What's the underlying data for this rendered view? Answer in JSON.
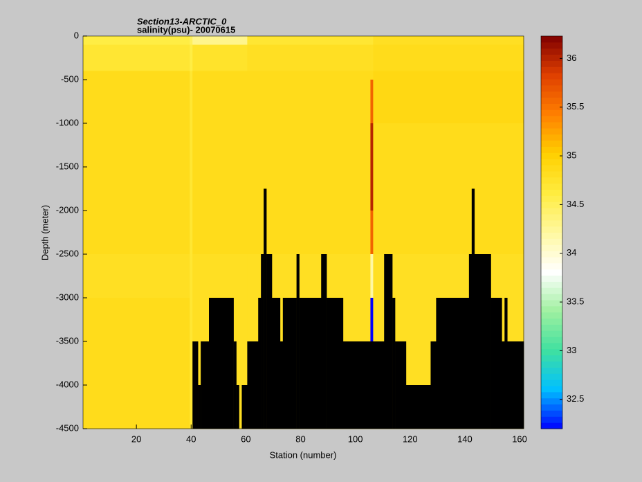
{
  "chart_data": {
    "type": "heatmap",
    "title": "Section13-ARCTIC_0",
    "subtitle": "salinity(psu)- 20070615",
    "x_label": "Station (number)",
    "y_label": "Depth (meter)",
    "xlim": [
      0.5,
      161.5
    ],
    "ylim": [
      -4500,
      0
    ],
    "xticks": [
      20,
      40,
      60,
      80,
      100,
      120,
      140,
      160
    ],
    "yticks": [
      0,
      -500,
      -1000,
      -1500,
      -2000,
      -2500,
      -3000,
      -3500,
      -4000,
      -4500
    ],
    "x_edges": [
      0.5,
      39.5,
      40.5,
      60.5,
      105.5,
      106.5,
      161.5
    ],
    "y_edges": [
      0,
      -100,
      -400,
      -500,
      -1000,
      -2000,
      -2500,
      -3000,
      -3500,
      -4500
    ],
    "values": [
      [
        34.6,
        34.5,
        34.3,
        34.7,
        34.7,
        34.8
      ],
      [
        34.7,
        34.6,
        34.75,
        34.8,
        34.8,
        34.85
      ],
      [
        34.85,
        34.7,
        34.85,
        34.85,
        34.85,
        34.9
      ],
      [
        34.85,
        34.7,
        34.85,
        34.85,
        35.6,
        34.9
      ],
      [
        34.85,
        34.7,
        34.85,
        34.85,
        36.0,
        34.85
      ],
      [
        34.85,
        34.7,
        34.85,
        34.85,
        35.6,
        34.85
      ],
      [
        34.8,
        34.7,
        34.8,
        34.8,
        34.2,
        34.8
      ],
      [
        34.85,
        34.7,
        34.8,
        34.8,
        32.2,
        34.8
      ],
      [
        34.85,
        34.7,
        34.8,
        34.8,
        34.8,
        34.8
      ]
    ],
    "clim": [
      32.2,
      36.23
    ],
    "colorbar_ticks": [
      32.5,
      33,
      33.5,
      34,
      34.5,
      35,
      35.5,
      36
    ],
    "colormap": [
      "#0000ff",
      "#00c0ff",
      "#40e0a0",
      "#a0f0a0",
      "#ffffff",
      "#fff8a0",
      "#ffec40",
      "#ffd000",
      "#ff8000",
      "#e04000",
      "#800000"
    ],
    "bottom_edges": [
      40.5,
      42.5,
      43.5,
      46.5,
      55.5,
      56.5,
      57.5,
      58.5,
      60.5,
      64.5,
      65.5,
      66.5,
      67.5,
      69.5,
      72.5,
      73.5,
      78.5,
      79.5,
      87.5,
      89.5,
      95.5,
      110.5,
      113.5,
      114.5,
      118.5,
      127.5,
      129.5,
      141.5,
      142.5,
      143.5,
      149.5,
      153.5,
      154.5,
      155.5,
      161.5
    ],
    "bottom_depths": [
      -3500,
      -4000,
      -3500,
      -3000,
      -3500,
      -4000,
      -4500,
      -4000,
      -3500,
      -3000,
      -2500,
      -1750,
      -2500,
      -3000,
      -3500,
      -3000,
      -2500,
      -3000,
      -2500,
      -3000,
      -3500,
      -2500,
      -3000,
      -3500,
      -4000,
      -3500,
      -3000,
      -2500,
      -1750,
      -2500,
      -3000,
      -3500,
      -3000,
      -3500
    ],
    "bottom_color": "#000000"
  }
}
